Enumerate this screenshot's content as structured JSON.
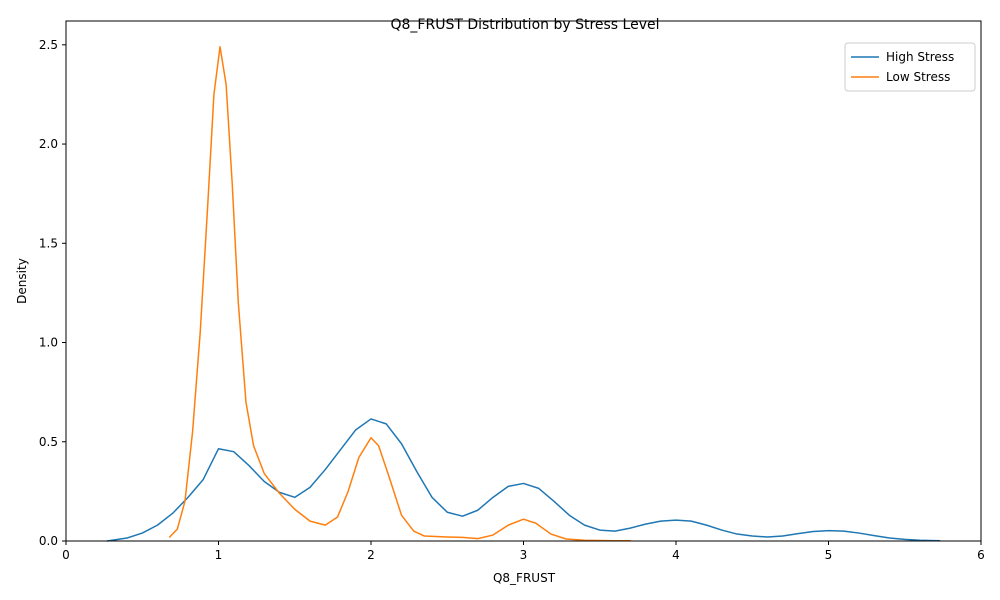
{
  "chart_data": {
    "type": "line",
    "title": "Q8_FRUST Distribution by Stress Level",
    "xlabel": "Q8_FRUST",
    "ylabel": "Density",
    "xlim": [
      0,
      6
    ],
    "ylim": [
      0,
      2.62
    ],
    "xticks": [
      0,
      1,
      2,
      3,
      4,
      5,
      6
    ],
    "yticks": [
      0.0,
      0.5,
      1.0,
      1.5,
      2.0,
      2.5
    ],
    "xtick_labels": [
      "0",
      "1",
      "2",
      "3",
      "4",
      "5",
      "6"
    ],
    "ytick_labels": [
      "0.0",
      "0.5",
      "1.0",
      "1.5",
      "2.0",
      "2.5"
    ],
    "grid": false,
    "legend_position": "top-right",
    "series": [
      {
        "name": "High Stress",
        "color": "#1f77b4",
        "points": [
          [
            0.27,
            0.0
          ],
          [
            0.4,
            0.015
          ],
          [
            0.5,
            0.04
          ],
          [
            0.6,
            0.08
          ],
          [
            0.7,
            0.14
          ],
          [
            0.8,
            0.22
          ],
          [
            0.9,
            0.31
          ],
          [
            1.0,
            0.465
          ],
          [
            1.1,
            0.45
          ],
          [
            1.2,
            0.38
          ],
          [
            1.3,
            0.3
          ],
          [
            1.4,
            0.245
          ],
          [
            1.5,
            0.22
          ],
          [
            1.6,
            0.27
          ],
          [
            1.7,
            0.36
          ],
          [
            1.8,
            0.46
          ],
          [
            1.9,
            0.56
          ],
          [
            2.0,
            0.615
          ],
          [
            2.1,
            0.59
          ],
          [
            2.2,
            0.49
          ],
          [
            2.3,
            0.35
          ],
          [
            2.4,
            0.22
          ],
          [
            2.5,
            0.145
          ],
          [
            2.6,
            0.125
          ],
          [
            2.7,
            0.155
          ],
          [
            2.8,
            0.22
          ],
          [
            2.9,
            0.275
          ],
          [
            3.0,
            0.29
          ],
          [
            3.1,
            0.265
          ],
          [
            3.2,
            0.2
          ],
          [
            3.3,
            0.13
          ],
          [
            3.4,
            0.08
          ],
          [
            3.5,
            0.055
          ],
          [
            3.6,
            0.05
          ],
          [
            3.7,
            0.065
          ],
          [
            3.8,
            0.085
          ],
          [
            3.9,
            0.1
          ],
          [
            4.0,
            0.105
          ],
          [
            4.1,
            0.1
          ],
          [
            4.2,
            0.08
          ],
          [
            4.3,
            0.055
          ],
          [
            4.4,
            0.035
          ],
          [
            4.5,
            0.025
          ],
          [
            4.6,
            0.02
          ],
          [
            4.7,
            0.025
          ],
          [
            4.8,
            0.037
          ],
          [
            4.9,
            0.048
          ],
          [
            5.0,
            0.052
          ],
          [
            5.1,
            0.05
          ],
          [
            5.2,
            0.04
          ],
          [
            5.3,
            0.027
          ],
          [
            5.4,
            0.015
          ],
          [
            5.5,
            0.008
          ],
          [
            5.6,
            0.004
          ],
          [
            5.73,
            0.001
          ]
        ]
      },
      {
        "name": "Low Stress",
        "color": "#ff7f0e",
        "points": [
          [
            0.68,
            0.02
          ],
          [
            0.73,
            0.06
          ],
          [
            0.78,
            0.2
          ],
          [
            0.83,
            0.55
          ],
          [
            0.88,
            1.05
          ],
          [
            0.93,
            1.7
          ],
          [
            0.97,
            2.25
          ],
          [
            1.01,
            2.49
          ],
          [
            1.05,
            2.3
          ],
          [
            1.09,
            1.8
          ],
          [
            1.13,
            1.2
          ],
          [
            1.18,
            0.7
          ],
          [
            1.23,
            0.48
          ],
          [
            1.3,
            0.34
          ],
          [
            1.4,
            0.24
          ],
          [
            1.5,
            0.16
          ],
          [
            1.6,
            0.1
          ],
          [
            1.7,
            0.08
          ],
          [
            1.78,
            0.12
          ],
          [
            1.85,
            0.25
          ],
          [
            1.92,
            0.42
          ],
          [
            2.0,
            0.52
          ],
          [
            2.05,
            0.48
          ],
          [
            2.12,
            0.32
          ],
          [
            2.2,
            0.13
          ],
          [
            2.28,
            0.05
          ],
          [
            2.35,
            0.025
          ],
          [
            2.5,
            0.02
          ],
          [
            2.6,
            0.018
          ],
          [
            2.7,
            0.012
          ],
          [
            2.8,
            0.03
          ],
          [
            2.9,
            0.08
          ],
          [
            3.0,
            0.11
          ],
          [
            3.08,
            0.09
          ],
          [
            3.18,
            0.035
          ],
          [
            3.28,
            0.01
          ],
          [
            3.4,
            0.004
          ],
          [
            3.6,
            0.001
          ],
          [
            3.7,
            0.001
          ]
        ]
      }
    ]
  }
}
